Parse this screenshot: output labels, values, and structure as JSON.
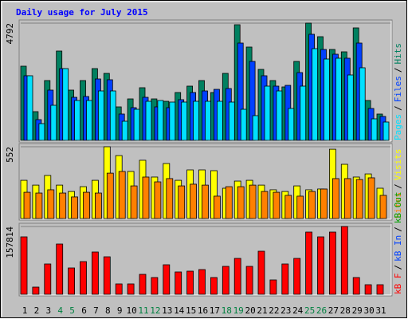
{
  "chart_data": [
    {
      "type": "bar",
      "title": "Daily usage for July 2015",
      "legend_separator": "/",
      "ylim": [
        0,
        4792
      ],
      "yticks": [
        4792
      ],
      "series": [
        {
          "name": "Hits",
          "color": "#008060",
          "values": [
            3032,
            1174,
            2445,
            3651,
            2054,
            2445,
            2934,
            2738,
            1369,
            1695,
            2152,
            1695,
            1597,
            1956,
            2217,
            2445,
            1956,
            2738,
            4727,
            3814,
            2901,
            2445,
            2184,
            3227,
            4792,
            4238,
            3716,
            3619,
            4597,
            1630,
            1076
          ]
        },
        {
          "name": "Files",
          "color": "#0040ff",
          "values": [
            2641,
            848,
            2054,
            2934,
            1760,
            1793,
            2510,
            2478,
            1076,
            1337,
            1760,
            1369,
            1337,
            1663,
            1956,
            2021,
            2086,
            2119,
            3977,
            3227,
            2641,
            2217,
            2249,
            2771,
            4336,
            3716,
            3521,
            3358,
            3977,
            1304,
            978
          ]
        },
        {
          "name": "Pages",
          "color": "#00e0ff",
          "values": [
            2641,
            685,
            1434,
            2934,
            1630,
            1630,
            2021,
            2021,
            782,
            1271,
            1597,
            1630,
            1565,
            1565,
            1597,
            1597,
            1597,
            1565,
            1271,
            1011,
            2217,
            2021,
            1304,
            2217,
            3749,
            3325,
            3358,
            2673,
            2967,
            880,
            750
          ]
        }
      ]
    },
    {
      "type": "bar",
      "ylim": [
        0,
        552
      ],
      "yticks": [
        552
      ],
      "series": [
        {
          "name": "Visits",
          "color": "#ffff00",
          "values": [
            294,
            257,
            331,
            257,
            208,
            245,
            294,
            552,
            484,
            362,
            448,
            319,
            423,
            294,
            374,
            374,
            368,
            233,
            288,
            294,
            257,
            221,
            208,
            251,
            221,
            227,
            533,
            417,
            319,
            343,
            233
          ]
        },
        {
          "name": "Sites",
          "color": "#ff8000",
          "values": [
            202,
            196,
            221,
            196,
            166,
            202,
            196,
            349,
            362,
            251,
            319,
            282,
            307,
            251,
            264,
            257,
            172,
            245,
            245,
            257,
            208,
            202,
            178,
            172,
            208,
            227,
            307,
            307,
            300,
            313,
            178
          ]
        }
      ]
    },
    {
      "type": "bar",
      "ylim": [
        0,
        157814
      ],
      "yticks": [
        157814
      ],
      "categories": [
        "1",
        "2",
        "3",
        "4",
        "5",
        "6",
        "7",
        "8",
        "9",
        "10",
        "11",
        "12",
        "13",
        "14",
        "15",
        "16",
        "17",
        "18",
        "19",
        "20",
        "21",
        "22",
        "23",
        "24",
        "25",
        "26",
        "27",
        "28",
        "29",
        "30",
        "31"
      ],
      "category_colors": [
        "#000000",
        "#000000",
        "#000000",
        "#008040",
        "#008040",
        "#000000",
        "#000000",
        "#000000",
        "#000000",
        "#000000",
        "#008040",
        "#008040",
        "#000000",
        "#000000",
        "#000000",
        "#000000",
        "#000000",
        "#008040",
        "#008040",
        "#000000",
        "#000000",
        "#000000",
        "#000000",
        "#000000",
        "#008040",
        "#008040",
        "#000000",
        "#000000",
        "#000000",
        "#000000",
        "#000000"
      ],
      "series": [
        {
          "name": "kB F",
          "color": "#ff0000",
          "values": [
            133676,
            16709,
            70551,
            116966,
            61268,
            76120,
            98399,
            87260,
            24136,
            24136,
            46415,
            38989,
            68694,
            51985,
            53841,
            57554,
            38989,
            64981,
            83547,
            64981,
            100256,
            33419,
            70551,
            83547,
            144815,
            133676,
            144815,
            157814,
            38989,
            22279,
            22279
          ]
        }
      ],
      "legend_only": [
        {
          "name": "kB In",
          "color": "#0040ff"
        },
        {
          "name": "kB Out",
          "color": "#00a000"
        }
      ]
    }
  ]
}
